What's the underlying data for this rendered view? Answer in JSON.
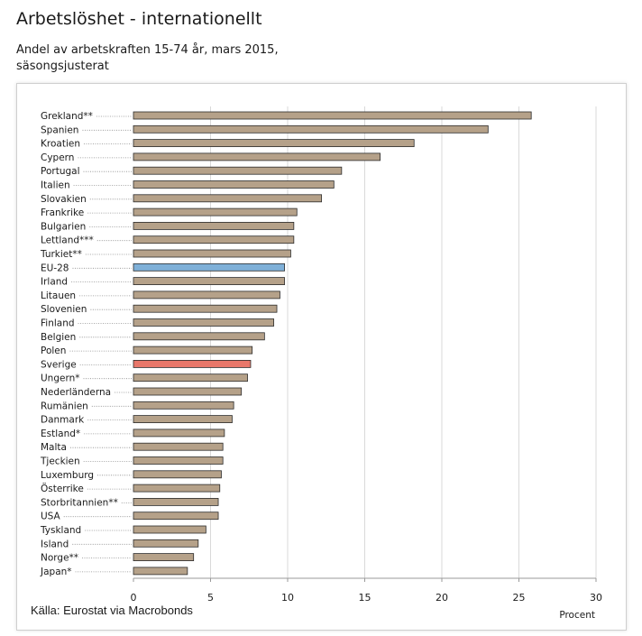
{
  "title": "Arbetslöshet - internationellt",
  "subtitle": "Andel av arbetskraften 15-74 år, mars 2015, säsongsjusterat",
  "source": "Källa: Eurostat via Macrobonds",
  "colors": {
    "default": "#b5a189",
    "eu": "#7fb0d8",
    "sweden": "#e8776a",
    "outline": "#2b2b2b",
    "grid": "#d9d9d9"
  },
  "chart_data": {
    "type": "bar",
    "orientation": "horizontal",
    "xlabel": "Procent",
    "xlim": [
      0,
      30
    ],
    "xticks": [
      0,
      5,
      10,
      15,
      20,
      25,
      30
    ],
    "grid": true,
    "categories": [
      "Grekland**",
      "Spanien",
      "Kroatien",
      "Cypern",
      "Portugal",
      "Italien",
      "Slovakien",
      "Frankrike",
      "Bulgarien",
      "Lettland***",
      "Turkiet**",
      "EU-28",
      "Irland",
      "Litauen",
      "Slovenien",
      "Finland",
      "Belgien",
      "Polen",
      "Sverige",
      "Ungern*",
      "Nederländerna",
      "Rumänien",
      "Danmark",
      "Estland*",
      "Malta",
      "Tjeckien",
      "Luxemburg",
      "Österrike",
      "Storbritannien**",
      "USA",
      "Tyskland",
      "Island",
      "Norge**",
      "Japan*"
    ],
    "values": [
      25.8,
      23.0,
      18.2,
      16.0,
      13.5,
      13.0,
      12.2,
      10.6,
      10.4,
      10.4,
      10.2,
      9.8,
      9.8,
      9.5,
      9.3,
      9.1,
      8.5,
      7.7,
      7.6,
      7.4,
      7.0,
      6.5,
      6.4,
      5.9,
      5.8,
      5.8,
      5.7,
      5.6,
      5.5,
      5.5,
      4.7,
      4.2,
      3.9,
      3.5
    ],
    "highlight": {
      "EU-28": "eu",
      "Sverige": "sweden"
    }
  }
}
